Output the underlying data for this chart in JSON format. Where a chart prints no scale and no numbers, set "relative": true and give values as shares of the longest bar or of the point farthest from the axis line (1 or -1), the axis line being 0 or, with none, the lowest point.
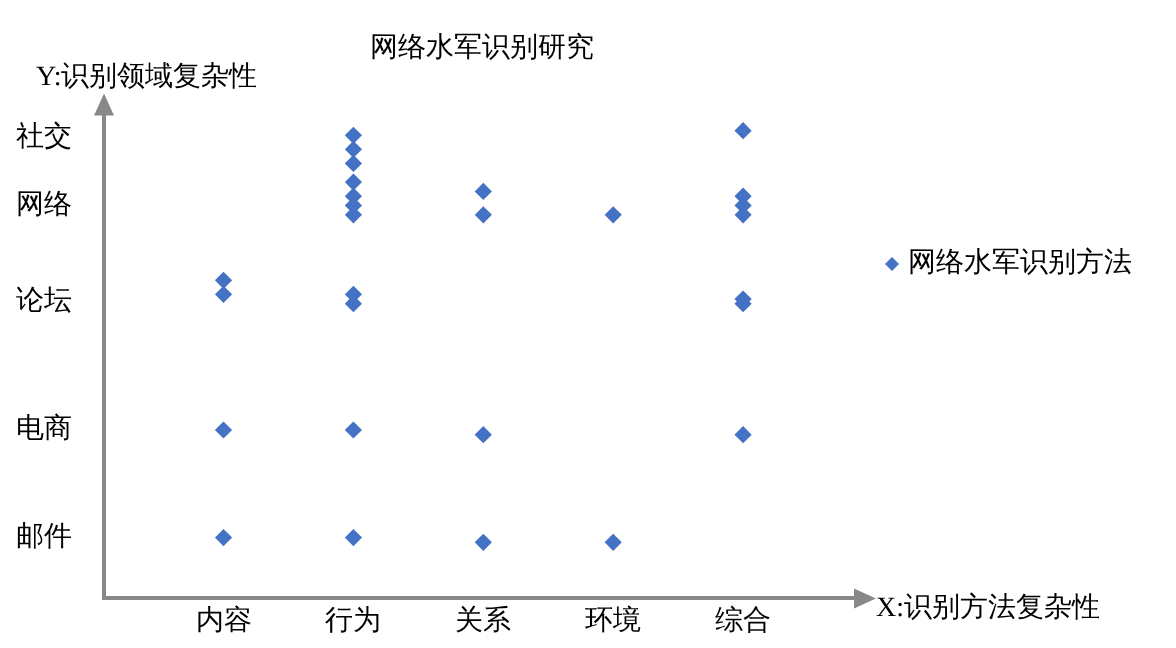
{
  "chart_data": {
    "type": "scatter",
    "title": "网络水军识别研究",
    "xlabel": "X:识别方法复杂性",
    "ylabel": "Y:识别领域复杂性",
    "categories": [
      "内容",
      "行为",
      "关系",
      "环境",
      "综合"
    ],
    "relative": true,
    "annotations": [
      "邮件",
      "电商",
      "论坛",
      "网络",
      "社交"
    ],
    "series": [
      {
        "name": "网络水军识别方法",
        "color": "#4472c4",
        "x": [
          "内容",
          "内容",
          "内容",
          "内容",
          "行为",
          "行为",
          "行为",
          "行为",
          "行为",
          "行为",
          "行为",
          "行为",
          "行为",
          "行为",
          "行为",
          "关系",
          "关系",
          "关系",
          "关系",
          "环境",
          "环境",
          "综合",
          "综合",
          "综合",
          "综合",
          "综合",
          "综合",
          "综合"
        ],
        "values": [
          0.68,
          0.65,
          0.36,
          0.13,
          0.99,
          0.96,
          0.93,
          0.89,
          0.86,
          0.84,
          0.82,
          0.65,
          0.63,
          0.36,
          0.13,
          0.87,
          0.82,
          0.35,
          0.12,
          0.82,
          0.12,
          1,
          0.86,
          0.84,
          0.82,
          0.63,
          0.64,
          0.35
        ]
      }
    ],
    "marker": "diamond",
    "legend": "right"
  }
}
